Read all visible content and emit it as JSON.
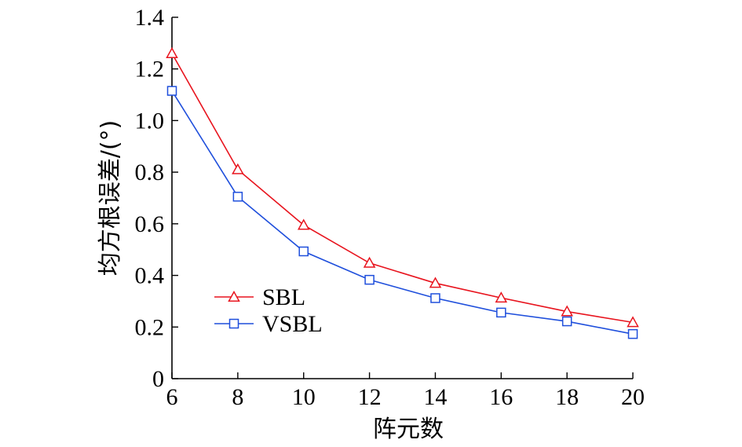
{
  "chart_data": {
    "type": "line",
    "title": "",
    "xlabel": "阵元数",
    "ylabel": "均方根误差/(°)",
    "x": [
      6,
      8,
      10,
      12,
      14,
      16,
      18,
      20
    ],
    "xticks": [
      "6",
      "8",
      "10",
      "12",
      "14",
      "16",
      "18",
      "20"
    ],
    "yticks": [
      "0",
      "0.2",
      "0.4",
      "0.6",
      "0.8",
      "1.0",
      "1.2",
      "1.4"
    ],
    "xlim": [
      6,
      20
    ],
    "ylim": [
      0,
      1.4
    ],
    "grid": false,
    "legend_position": "bottom-left",
    "series": [
      {
        "name": "SBL",
        "marker": "triangle",
        "color": "#e8141e",
        "values": [
          1.26,
          0.81,
          0.595,
          0.448,
          0.37,
          0.313,
          0.26,
          0.218
        ]
      },
      {
        "name": "VSBL",
        "marker": "square",
        "color": "#1f4fdc",
        "values": [
          1.115,
          0.705,
          0.493,
          0.383,
          0.312,
          0.256,
          0.222,
          0.173
        ]
      }
    ]
  }
}
